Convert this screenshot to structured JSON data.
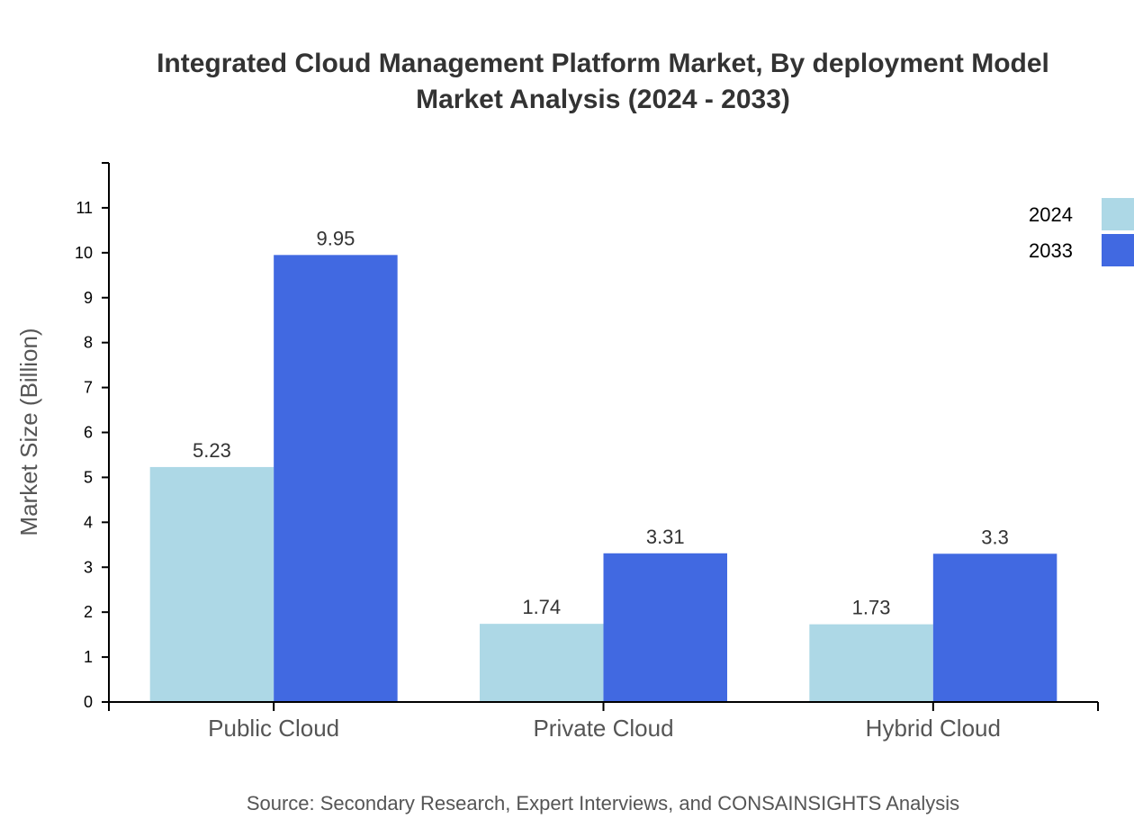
{
  "chart_data": {
    "type": "bar",
    "title_lines": [
      "Integrated Cloud Management Platform Market, By deployment Model",
      "Market Analysis (2024 - 2033)"
    ],
    "xlabel": "",
    "ylabel": "Market Size (Billion)",
    "categories": [
      "Public Cloud",
      "Private Cloud",
      "Hybrid Cloud"
    ],
    "series": [
      {
        "name": "2024",
        "color": "#add8e6",
        "values": [
          5.23,
          1.74,
          1.73
        ]
      },
      {
        "name": "2033",
        "color": "#4169e1",
        "values": [
          9.95,
          3.31,
          3.3
        ]
      }
    ],
    "ylim": [
      0,
      12
    ],
    "yticks": [
      0,
      1,
      2,
      3,
      4,
      5,
      6,
      7,
      8,
      9,
      10,
      11
    ],
    "grid": false,
    "legend_position": "top-right",
    "data_labels": true,
    "source": "Source: Secondary Research, Expert Interviews, and CONSAINSIGHTS Analysis"
  }
}
